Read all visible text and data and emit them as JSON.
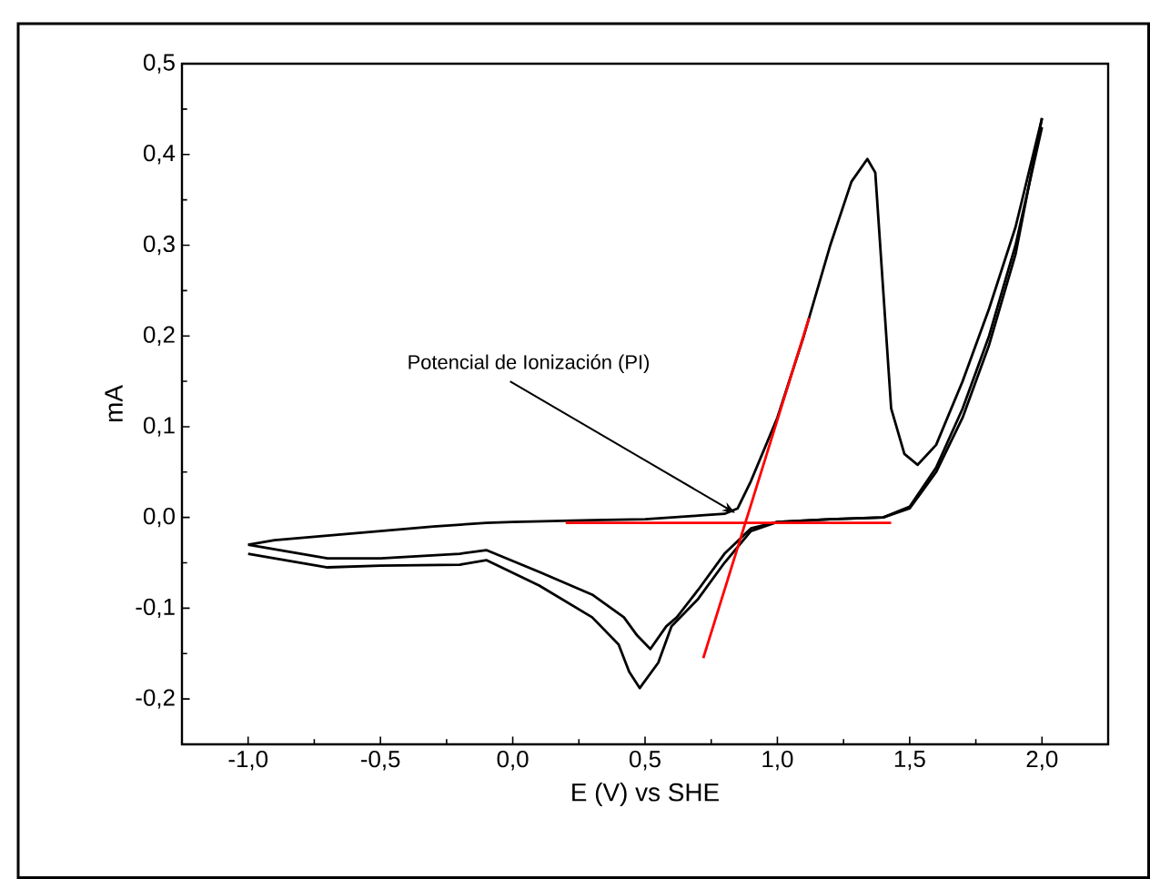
{
  "chart_data": {
    "type": "line",
    "xlabel": "E (V) vs SHE",
    "ylabel": "mA",
    "xlim": [
      -1.25,
      2.25
    ],
    "ylim": [
      -0.25,
      0.5
    ],
    "xticks": [
      {
        "value": -1.0,
        "label": "-1,0"
      },
      {
        "value": -0.5,
        "label": "-0,5"
      },
      {
        "value": 0.0,
        "label": "0,0"
      },
      {
        "value": 0.5,
        "label": "0,5"
      },
      {
        "value": 1.0,
        "label": "1,0"
      },
      {
        "value": 1.5,
        "label": "1,5"
      },
      {
        "value": 2.0,
        "label": "2,0"
      }
    ],
    "yticks": [
      {
        "value": -0.2,
        "label": "-0,2"
      },
      {
        "value": -0.1,
        "label": "-0,1"
      },
      {
        "value": 0.0,
        "label": "0,0"
      },
      {
        "value": 0.1,
        "label": "0,1"
      },
      {
        "value": 0.2,
        "label": "0,2"
      },
      {
        "value": 0.3,
        "label": "0,3"
      },
      {
        "value": 0.4,
        "label": "0,4"
      },
      {
        "value": 0.5,
        "label": "0,5"
      }
    ],
    "grid": false,
    "marker": "none",
    "line_style": "solid",
    "annotations": [
      {
        "text": "Potencial de Ionización (PI)",
        "x": 0.84,
        "y": 0.005
      }
    ],
    "series": [
      {
        "color": "#000000",
        "x": [
          -1.0,
          -0.9,
          -0.7,
          -0.5,
          -0.3,
          -0.1,
          0.0,
          0.3,
          0.5,
          0.7,
          0.8,
          0.85,
          0.9,
          1.0,
          1.1,
          1.2,
          1.28,
          1.34,
          1.37,
          1.4,
          1.43,
          1.48,
          1.53,
          1.6,
          1.7,
          1.8,
          1.9,
          2.0
        ],
        "values": [
          -0.03,
          -0.025,
          -0.02,
          -0.015,
          -0.01,
          -0.006,
          -0.005,
          -0.003,
          -0.002,
          0.002,
          0.004,
          0.01,
          0.04,
          0.11,
          0.2,
          0.3,
          0.37,
          0.395,
          0.38,
          0.25,
          0.12,
          0.07,
          0.058,
          0.08,
          0.15,
          0.23,
          0.32,
          0.44
        ]
      },
      {
        "color": "#000000",
        "x": [
          2.0,
          1.9,
          1.8,
          1.7,
          1.6,
          1.5,
          1.4,
          1.2,
          1.0,
          0.9,
          0.8,
          0.7,
          0.6,
          0.55,
          0.48,
          0.44,
          0.4,
          0.3,
          0.1,
          -0.1,
          -0.2,
          -0.5,
          -0.7,
          -0.9,
          -1.0
        ],
        "values": [
          0.44,
          0.29,
          0.19,
          0.11,
          0.05,
          0.01,
          0.0,
          -0.002,
          -0.005,
          -0.015,
          -0.05,
          -0.09,
          -0.12,
          -0.16,
          -0.188,
          -0.17,
          -0.14,
          -0.11,
          -0.075,
          -0.047,
          -0.052,
          -0.053,
          -0.055,
          -0.045,
          -0.04
        ]
      },
      {
        "color": "#000000",
        "x": [
          2.0,
          1.9,
          1.8,
          1.7,
          1.6,
          1.5,
          1.4,
          1.2,
          1.0,
          0.9,
          0.8,
          0.7,
          0.62,
          0.58,
          0.52,
          0.47,
          0.42,
          0.3,
          0.1,
          -0.1,
          -0.2,
          -0.5,
          -0.7,
          -0.9,
          -1.0
        ],
        "values": [
          0.43,
          0.3,
          0.2,
          0.12,
          0.055,
          0.012,
          0.0,
          -0.002,
          -0.005,
          -0.012,
          -0.04,
          -0.08,
          -0.11,
          -0.12,
          -0.145,
          -0.13,
          -0.11,
          -0.085,
          -0.06,
          -0.036,
          -0.04,
          -0.045,
          -0.045,
          -0.035,
          -0.03
        ]
      },
      {
        "color": "#ff0000",
        "x": [
          0.2,
          1.43
        ],
        "values": [
          -0.006,
          -0.006
        ]
      },
      {
        "color": "#ff0000",
        "x": [
          0.72,
          1.12
        ],
        "values": [
          -0.155,
          0.22
        ]
      }
    ]
  }
}
